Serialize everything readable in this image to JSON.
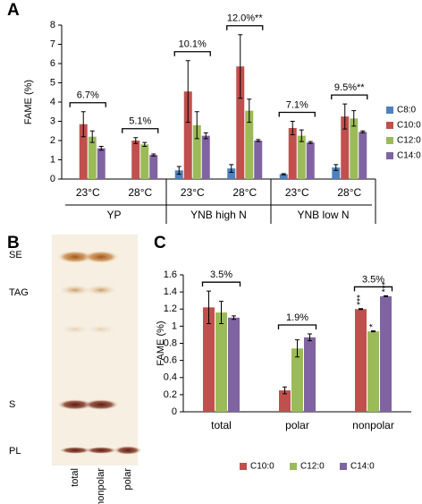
{
  "chart_data": [
    {
      "type": "bar",
      "panel_label": "A",
      "ylabel": "FAME (%)",
      "categories": [
        "23°C",
        "28°C",
        "23°C",
        "28°C",
        "23°C",
        "28°C"
      ],
      "group_labels": [
        "YP",
        "YNB high N",
        "YNB low N"
      ],
      "annotations": [
        "6.7%",
        "5.1%",
        "10.1%",
        "12.0%**",
        "7.1%",
        "9.5%**"
      ],
      "ylim": [
        0,
        8
      ],
      "yticks": [
        0,
        1,
        2,
        3,
        4,
        5,
        6,
        7,
        8
      ],
      "legend": "right",
      "series": [
        {
          "name": "C8:0",
          "color": "#4f81bd",
          "values": [
            null,
            null,
            0.45,
            0.55,
            0.25,
            0.6
          ],
          "errors": [
            null,
            null,
            0.2,
            0.2,
            0.03,
            0.15
          ]
        },
        {
          "name": "C10:0",
          "color": "#c0504d",
          "values": [
            2.85,
            2.0,
            4.55,
            5.85,
            2.65,
            3.25
          ],
          "errors": [
            0.65,
            0.15,
            1.6,
            1.65,
            0.35,
            0.65
          ]
        },
        {
          "name": "C12:0",
          "color": "#9bbb59",
          "values": [
            2.2,
            1.8,
            2.8,
            3.55,
            2.25,
            3.15
          ],
          "errors": [
            0.3,
            0.1,
            0.7,
            0.6,
            0.3,
            0.4
          ]
        },
        {
          "name": "C14:0",
          "color": "#8064a2",
          "values": [
            1.6,
            1.25,
            2.25,
            2.0,
            1.9,
            2.45
          ],
          "errors": [
            0.1,
            0.05,
            0.15,
            0.05,
            0.05,
            0.05
          ]
        }
      ]
    },
    {
      "type": "bar",
      "panel_label": "C",
      "ylabel": "FAME (%)",
      "categories": [
        "total",
        "polar",
        "nonpolar"
      ],
      "annotations": [
        "3.5%",
        "1.9%",
        "3.5%"
      ],
      "ylim": [
        0,
        1.6
      ],
      "yticks": [
        0,
        0.2,
        0.4,
        0.6,
        0.8,
        1,
        1.2,
        1.4,
        1.6
      ],
      "legend": "bottom",
      "series": [
        {
          "name": "C10:0",
          "color": "#c0504d",
          "values": [
            1.22,
            0.25,
            1.2
          ],
          "errors": [
            0.19,
            0.04,
            0.005
          ],
          "significance": [
            null,
            null,
            "***"
          ]
        },
        {
          "name": "C12:0",
          "color": "#9bbb59",
          "values": [
            1.16,
            0.74,
            0.94
          ],
          "errors": [
            0.13,
            0.1,
            0.005
          ],
          "significance": [
            null,
            null,
            "*"
          ]
        },
        {
          "name": "C14:0",
          "color": "#8064a2",
          "values": [
            1.1,
            0.87,
            1.35
          ],
          "errors": [
            0.02,
            0.04,
            0.005
          ],
          "significance": [
            null,
            null,
            "***"
          ]
        }
      ]
    }
  ],
  "panel_b": {
    "label": "B",
    "bands": [
      "SE",
      "TAG",
      "S",
      "PL"
    ],
    "lanes": [
      "total",
      "nonpolar",
      "polar"
    ]
  }
}
